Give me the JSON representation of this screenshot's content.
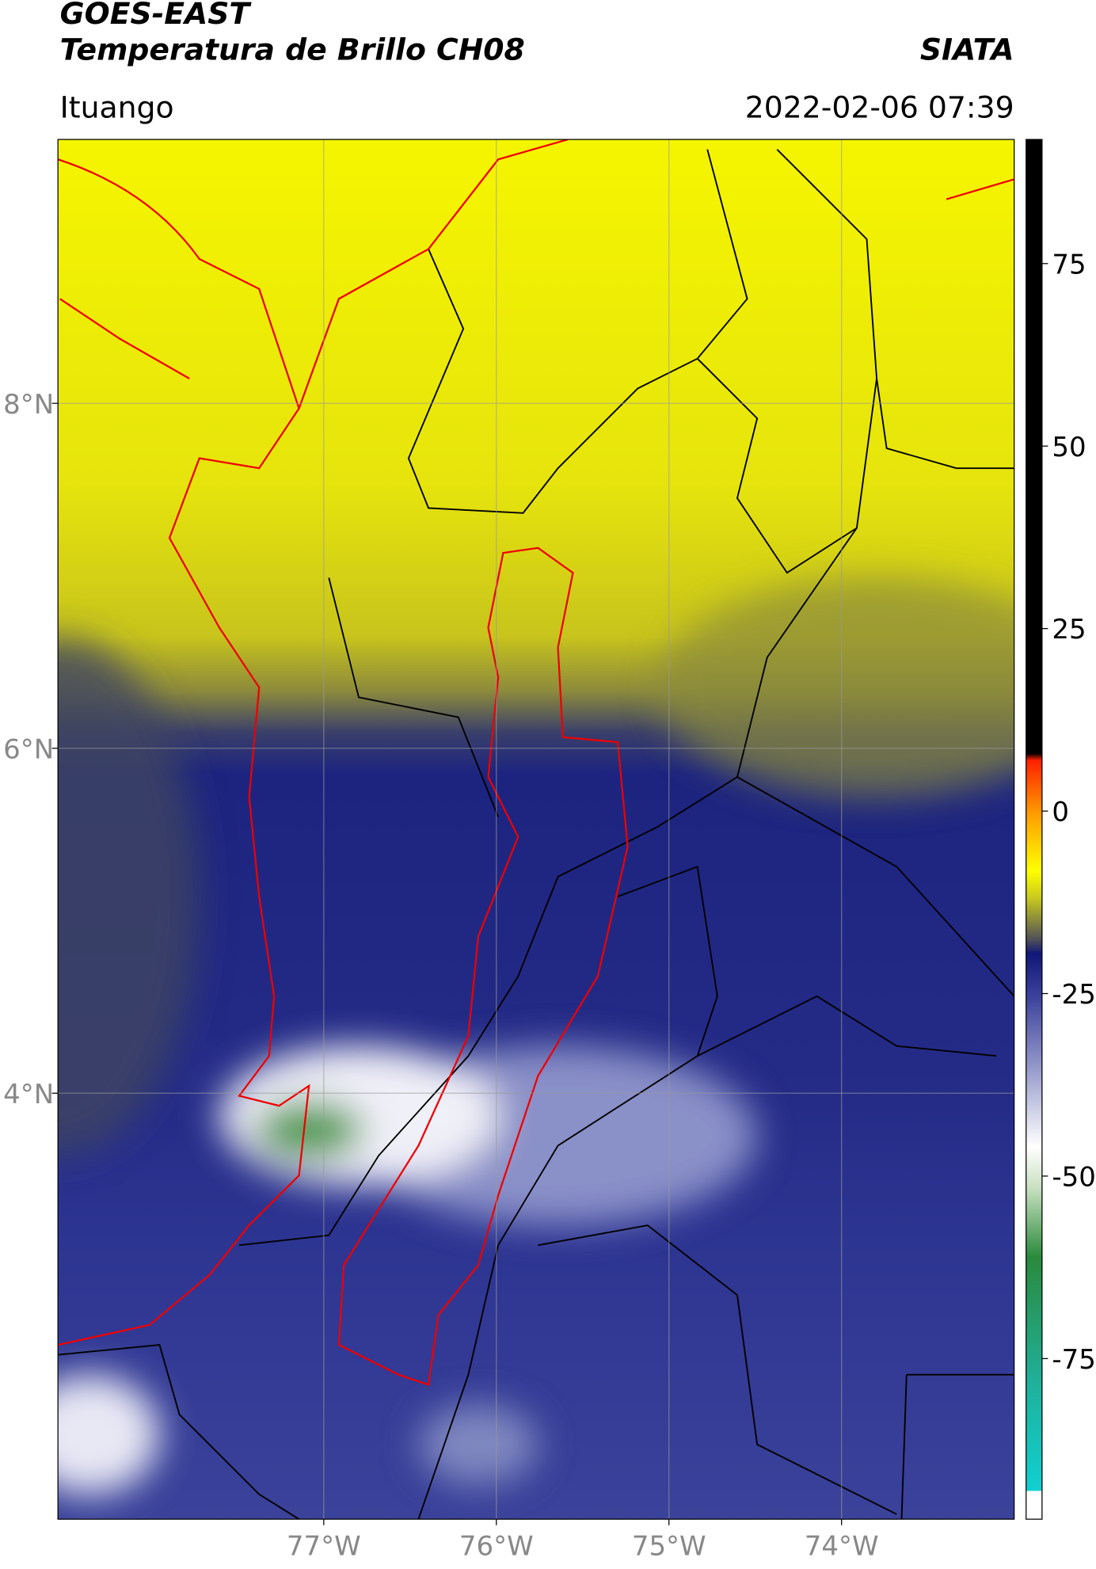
{
  "header": {
    "title": "GOES-EAST",
    "subtitle": "Temperatura de Brillo CH08",
    "source": "SIATA",
    "region": "Ituango",
    "datetime": "2022-02-06 07:39"
  },
  "map": {
    "xlim": [
      -78.54,
      -73.0
    ],
    "ylim": [
      1.53,
      9.53
    ],
    "xticks": [
      {
        "value": -77,
        "label": "77°W"
      },
      {
        "value": -76,
        "label": "76°W"
      },
      {
        "value": -75,
        "label": "75°W"
      },
      {
        "value": -74,
        "label": "74°W"
      }
    ],
    "yticks": [
      {
        "value": 8,
        "label": "8°N"
      },
      {
        "value": 6,
        "label": "6°N"
      },
      {
        "value": 4,
        "label": "4°N"
      }
    ],
    "grid": true
  },
  "colorbar": {
    "lim": [
      -97,
      92
    ],
    "ticks": [
      75,
      50,
      25,
      0,
      -25,
      -50,
      -75
    ]
  }
}
